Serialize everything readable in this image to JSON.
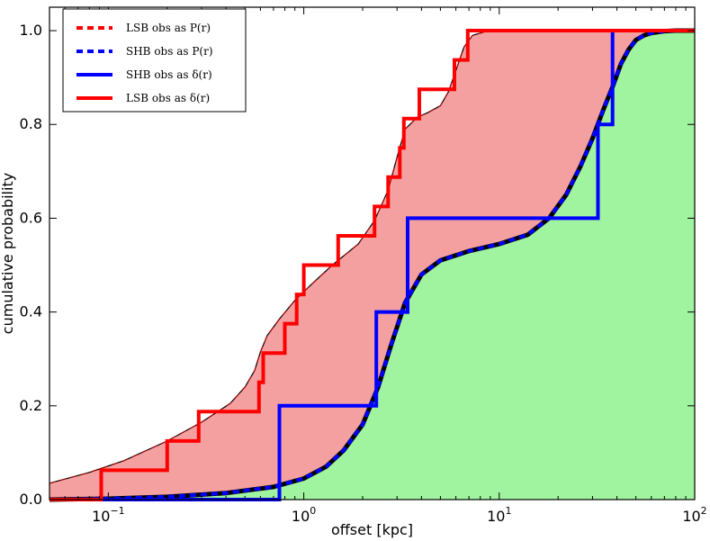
{
  "chart_data": {
    "type": "line",
    "title": "",
    "xlabel": "offset [kpc]",
    "ylabel": "cumulative probability",
    "xscale": "log",
    "xlim": [
      0.05,
      100
    ],
    "ylim": [
      0.0,
      1.05
    ],
    "x_tick_values": [
      0.1,
      1,
      10,
      100
    ],
    "x_tick_labels": [
      {
        "base": "10",
        "exp": "−1"
      },
      {
        "base": "10",
        "exp": "0"
      },
      {
        "base": "10",
        "exp": "1"
      },
      {
        "base": "10",
        "exp": "2"
      }
    ],
    "y_ticks": [
      "0.0",
      "0.2",
      "0.4",
      "0.6",
      "0.8",
      "1.0"
    ],
    "y_tick_values": [
      0.0,
      0.2,
      0.4,
      0.6,
      0.8,
      1.0
    ],
    "grid": false,
    "legend_position": "top-left",
    "colors": {
      "lsb": "#ff0000",
      "shb": "#0000ff",
      "lsb_fill": "#f4a0a0",
      "shb_fill": "#a0f4a0",
      "model_outline": "#000000"
    },
    "legend": [
      {
        "label": "LSB obs as P(r)",
        "color": "#ff0000",
        "style": "dashed"
      },
      {
        "label": "SHB obs as P(r)",
        "color": "#0000ff",
        "style": "dashed"
      },
      {
        "label": "SHB obs as δ(r)",
        "color": "#0000ff",
        "style": "solid"
      },
      {
        "label": "LSB obs as δ(r)",
        "color": "#ff0000",
        "style": "solid"
      }
    ],
    "series": [
      {
        "name": "LSB obs as P(r)",
        "style": "dashed",
        "x": [
          0.05,
          0.08,
          0.12,
          0.2,
          0.3,
          0.42,
          0.5,
          0.56,
          0.6,
          0.65,
          0.75,
          0.9,
          1.1,
          1.4,
          1.9,
          2.3,
          2.7,
          3.0,
          3.3,
          3.8,
          4.3,
          5.0,
          5.5,
          6.0,
          6.6,
          7.3,
          8.5,
          12,
          20,
          50,
          100
        ],
        "y": [
          0.035,
          0.058,
          0.083,
          0.125,
          0.165,
          0.205,
          0.24,
          0.275,
          0.315,
          0.35,
          0.385,
          0.425,
          0.46,
          0.5,
          0.545,
          0.595,
          0.66,
          0.73,
          0.79,
          0.815,
          0.825,
          0.84,
          0.87,
          0.915,
          0.965,
          0.99,
          0.998,
          1.0,
          1.0,
          1.0,
          1.0
        ]
      },
      {
        "name": "SHB obs as P(r)",
        "style": "dashed",
        "x": [
          0.05,
          0.1,
          0.2,
          0.4,
          0.7,
          1.0,
          1.3,
          1.6,
          2.0,
          2.4,
          2.8,
          3.3,
          4.0,
          5.0,
          7.0,
          10,
          14,
          18,
          22,
          26,
          30,
          34,
          38,
          42,
          46,
          50,
          55,
          60,
          70,
          80,
          100
        ],
        "y": [
          0.0,
          0.002,
          0.006,
          0.014,
          0.027,
          0.045,
          0.07,
          0.105,
          0.16,
          0.24,
          0.33,
          0.42,
          0.48,
          0.51,
          0.53,
          0.545,
          0.565,
          0.6,
          0.65,
          0.71,
          0.77,
          0.83,
          0.88,
          0.93,
          0.96,
          0.98,
          0.99,
          0.995,
          0.999,
          1.0,
          1.0
        ]
      },
      {
        "name": "SHB obs as δ(r)",
        "style": "step",
        "x": [
          0.05,
          0.75,
          2.35,
          3.4,
          32,
          38,
          100
        ],
        "y": [
          0.0,
          0.2,
          0.4,
          0.6,
          0.8,
          1.0,
          1.0
        ]
      },
      {
        "name": "LSB obs as δ(r)",
        "style": "step",
        "x": [
          0.05,
          0.092,
          0.2,
          0.29,
          0.59,
          0.62,
          0.8,
          0.92,
          1.0,
          1.5,
          2.3,
          2.7,
          3.1,
          3.25,
          3.9,
          5.9,
          6.9,
          100
        ],
        "y": [
          0.0,
          0.0625,
          0.125,
          0.1875,
          0.25,
          0.3125,
          0.375,
          0.4375,
          0.5,
          0.5625,
          0.625,
          0.6875,
          0.75,
          0.8125,
          0.875,
          0.9375,
          1.0,
          1.0
        ]
      }
    ]
  }
}
